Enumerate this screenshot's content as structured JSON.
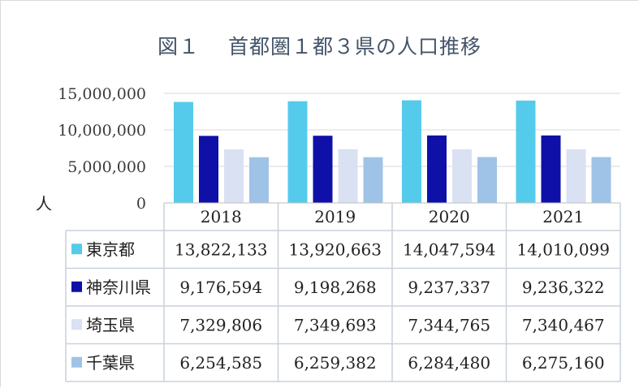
{
  "title": "図１　 首都圏１都３県の人口推移",
  "chart_data": {
    "type": "bar",
    "title": "図１　 首都圏１都３県の人口推移",
    "ylabel": "人",
    "ylim": [
      0,
      15000000
    ],
    "yticks": [
      "15,000,000",
      "10,000,000",
      "5,000,000",
      "0"
    ],
    "categories": [
      "2018",
      "2019",
      "2020",
      "2021"
    ],
    "series": [
      {
        "name": "東京都",
        "color": "#55cbeb",
        "values": [
          13822133,
          13920663,
          14047594,
          14010099
        ],
        "labels": [
          "13,822,133",
          "13,920,663",
          "14,047,594",
          "14,010,099"
        ]
      },
      {
        "name": "神奈川県",
        "color": "#0e10a8",
        "values": [
          9176594,
          9198268,
          9237337,
          9236322
        ],
        "labels": [
          "9,176,594",
          "9,198,268",
          "9,237,337",
          "9,236,322"
        ]
      },
      {
        "name": "埼玉県",
        "color": "#d9e1f2",
        "values": [
          7329806,
          7349693,
          7344765,
          7340467
        ],
        "labels": [
          "7,329,806",
          "7,349,693",
          "7,344,765",
          "7,340,467"
        ]
      },
      {
        "name": "千葉県",
        "color": "#9fc3e7",
        "values": [
          6254585,
          6259382,
          6284480,
          6275160
        ],
        "labels": [
          "6,254,585",
          "6,259,382",
          "6,284,480",
          "6,275,160"
        ]
      }
    ],
    "grid": true,
    "legend": "data-table"
  }
}
